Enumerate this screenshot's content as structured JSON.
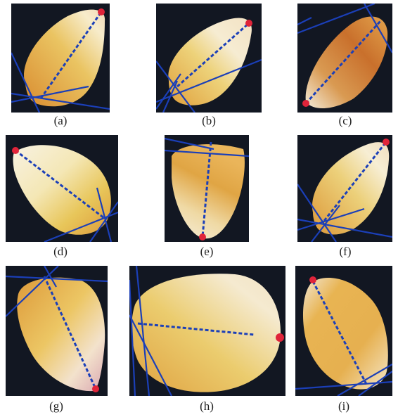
{
  "figure": {
    "panels": [
      {
        "id": "a",
        "caption": "(a)"
      },
      {
        "id": "b",
        "caption": "(b)"
      },
      {
        "id": "c",
        "caption": "(c)"
      },
      {
        "id": "d",
        "caption": "(d)"
      },
      {
        "id": "e",
        "caption": "(e)"
      },
      {
        "id": "f",
        "caption": "(f)"
      },
      {
        "id": "g",
        "caption": "(g)"
      },
      {
        "id": "h",
        "caption": "(h)"
      },
      {
        "id": "i",
        "caption": "(i)"
      }
    ],
    "colors": {
      "background": "#121722",
      "kernel_light": "#f6eed2",
      "kernel_yellow": "#e8c45a",
      "kernel_orange": "#d9902f",
      "line_blue": "#1b3fb8",
      "marker_red": "#e0243a"
    }
  }
}
